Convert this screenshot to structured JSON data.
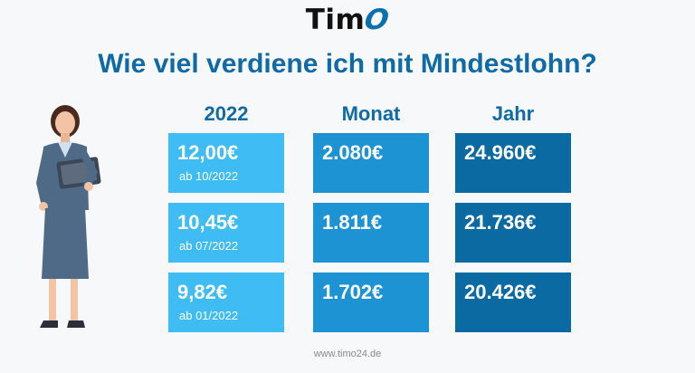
{
  "brand": {
    "name_prefix": "Tim",
    "name_suffix": "O"
  },
  "headline": "Wie viel verdiene ich mit Mindestlohn?",
  "columns": {
    "year": "2022",
    "month": "Monat",
    "annual": "Jahr"
  },
  "rows": [
    {
      "wage": "12,00€",
      "since": "ab 10/2022",
      "month": "2.080€",
      "year": "24.960€"
    },
    {
      "wage": "10,45€",
      "since": "ab 07/2022",
      "month": "1.811€",
      "year": "21.736€"
    },
    {
      "wage": "9,82€",
      "since": "ab 01/2022",
      "month": "1.702€",
      "year": "20.426€"
    }
  ],
  "footer": "www.timo24.de",
  "colors": {
    "headline": "#0f6aa5",
    "tile_light": "#3fbcf3",
    "tile_mid": "#1e93d3",
    "tile_dark": "#0b6aa2"
  }
}
